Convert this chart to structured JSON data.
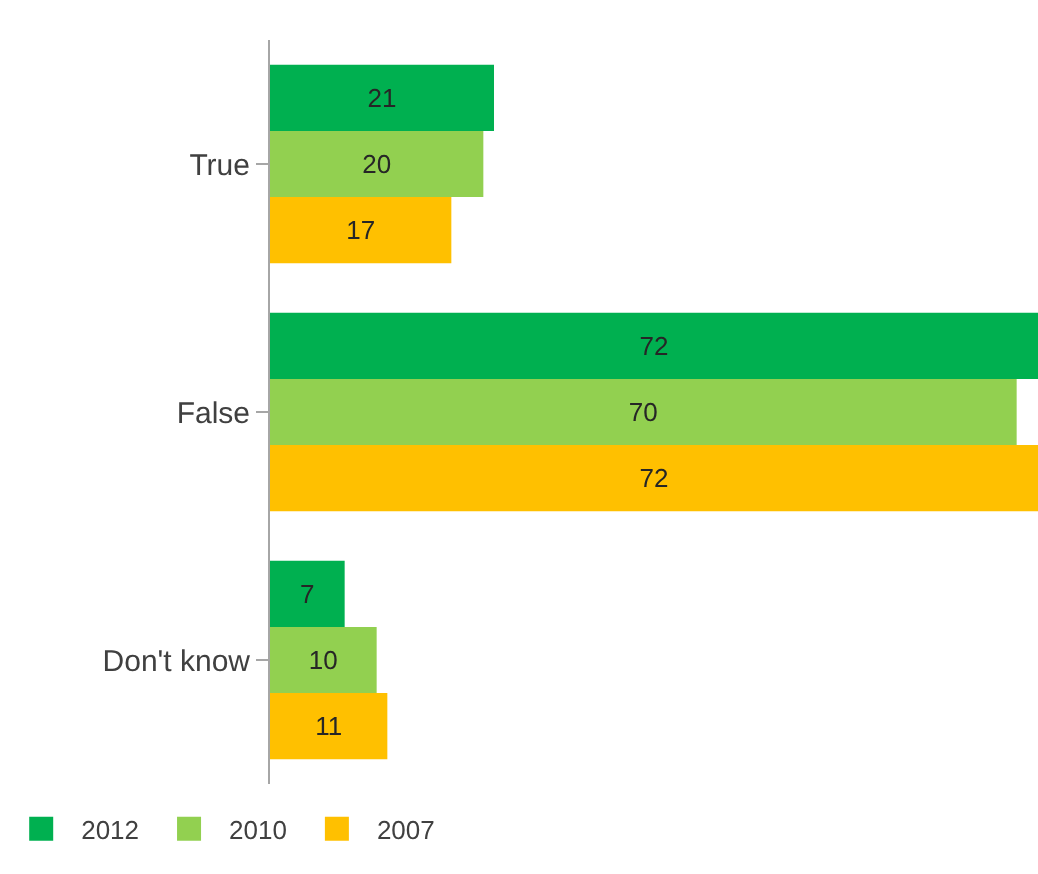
{
  "chart_data": {
    "type": "bar",
    "orientation": "horizontal",
    "categories": [
      "True",
      "False",
      "Don't know"
    ],
    "series": [
      {
        "name": "2012",
        "color": "#00b050",
        "values": [
          21,
          72,
          7
        ]
      },
      {
        "name": "2010",
        "color": "#92d050",
        "values": [
          20,
          70,
          10
        ]
      },
      {
        "name": "2007",
        "color": "#ffc000",
        "values": [
          17,
          72,
          11
        ]
      }
    ],
    "xlim": [
      0,
      72
    ],
    "data_labels": true,
    "tick_labels": "y",
    "legend": "bottom left"
  }
}
